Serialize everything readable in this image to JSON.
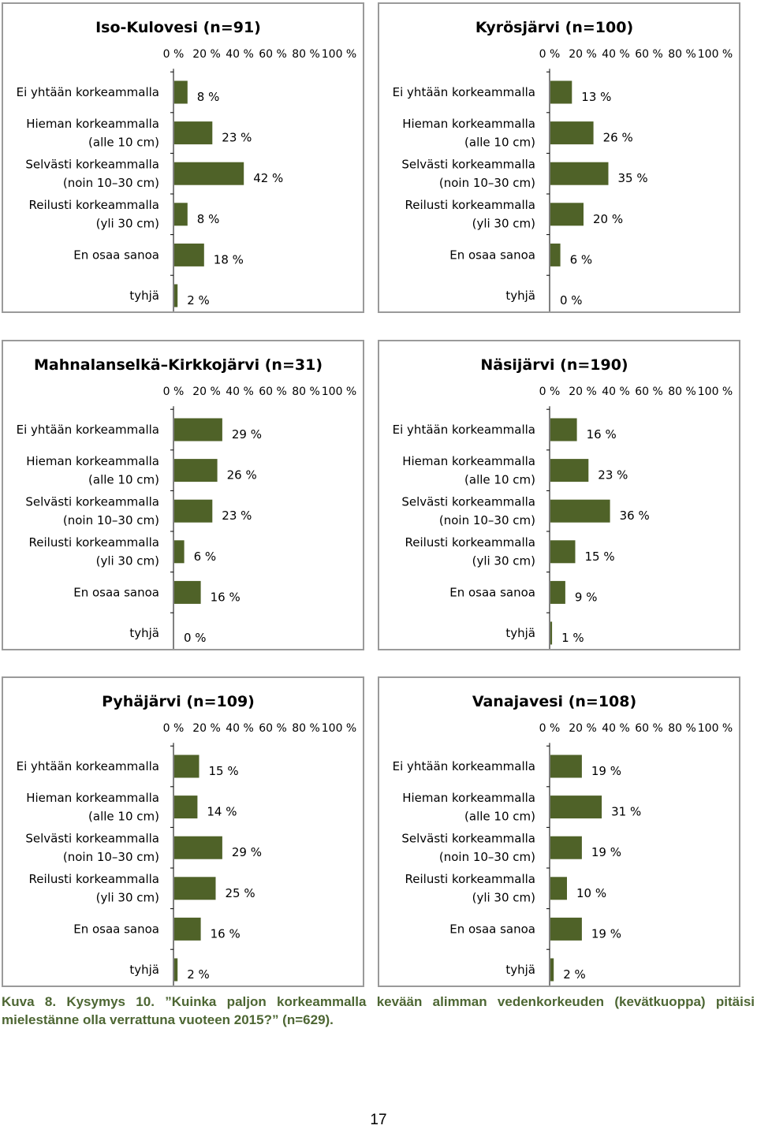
{
  "chart_data": [
    {
      "type": "bar",
      "orientation": "horizontal",
      "title": "Iso-Kulovesi (n=91)",
      "categories": [
        [
          "Ei yhtään korkeammalla"
        ],
        [
          "Hieman korkeammalla",
          "(alle 10 cm)"
        ],
        [
          "Selvästi korkeammalla",
          "(noin 10–30 cm)"
        ],
        [
          "Reilusti korkeammalla",
          "(yli 30 cm)"
        ],
        [
          "En osaa sanoa"
        ],
        [
          "tyhjä"
        ]
      ],
      "values": [
        8,
        23,
        42,
        8,
        18,
        2
      ],
      "value_labels": [
        "8 %",
        "23 %",
        "42 %",
        "8 %",
        "18 %",
        "2 %"
      ],
      "xticks": [
        "0 %",
        "20 %",
        "40 %",
        "60 %",
        "80 %",
        "100 %"
      ],
      "xlim": [
        0,
        100
      ],
      "xaxis_position": "top",
      "grid": false,
      "legend": "none",
      "bar_color": "#4f6228"
    },
    {
      "type": "bar",
      "orientation": "horizontal",
      "title": "Kyrösjärvi (n=100)",
      "categories": [
        [
          "Ei yhtään korkeammalla"
        ],
        [
          "Hieman korkeammalla",
          "(alle 10 cm)"
        ],
        [
          "Selvästi korkeammalla",
          "(noin 10–30 cm)"
        ],
        [
          "Reilusti korkeammalla",
          "(yli 30 cm)"
        ],
        [
          "En osaa sanoa"
        ],
        [
          "tyhjä"
        ]
      ],
      "values": [
        13,
        26,
        35,
        20,
        6,
        0
      ],
      "value_labels": [
        "13 %",
        "26 %",
        "35 %",
        "20 %",
        "6 %",
        "0 %"
      ],
      "xticks": [
        "0 %",
        "20 %",
        "40 %",
        "60 %",
        "80 %",
        "100 %"
      ],
      "xlim": [
        0,
        100
      ],
      "xaxis_position": "top",
      "grid": false,
      "legend": "none",
      "bar_color": "#4f6228"
    },
    {
      "type": "bar",
      "orientation": "horizontal",
      "title": "Mahnalanselkä–Kirkkojärvi  (n=31)",
      "categories": [
        [
          "Ei yhtään korkeammalla"
        ],
        [
          "Hieman korkeammalla",
          "(alle 10 cm)"
        ],
        [
          "Selvästi korkeammalla",
          "(noin 10–30 cm)"
        ],
        [
          "Reilusti korkeammalla",
          "(yli 30 cm)"
        ],
        [
          "En osaa sanoa"
        ],
        [
          "tyhjä"
        ]
      ],
      "values": [
        29,
        26,
        23,
        6,
        16,
        0
      ],
      "value_labels": [
        "29 %",
        "26 %",
        "23 %",
        "6 %",
        "16 %",
        "0 %"
      ],
      "xticks": [
        "0 %",
        "20 %",
        "40 %",
        "60 %",
        "80 %",
        "100 %"
      ],
      "xlim": [
        0,
        100
      ],
      "xaxis_position": "top",
      "grid": false,
      "legend": "none",
      "bar_color": "#4f6228"
    },
    {
      "type": "bar",
      "orientation": "horizontal",
      "title": "Näsijärvi (n=190)",
      "categories": [
        [
          "Ei yhtään korkeammalla"
        ],
        [
          "Hieman korkeammalla",
          "(alle 10 cm)"
        ],
        [
          "Selvästi korkeammalla",
          "(noin 10–30 cm)"
        ],
        [
          "Reilusti korkeammalla",
          "(yli 30 cm)"
        ],
        [
          "En osaa sanoa"
        ],
        [
          "tyhjä"
        ]
      ],
      "values": [
        16,
        23,
        36,
        15,
        9,
        1
      ],
      "value_labels": [
        "16 %",
        "23 %",
        "36 %",
        "15 %",
        "9 %",
        "1 %"
      ],
      "xticks": [
        "0 %",
        "20 %",
        "40 %",
        "60 %",
        "80 %",
        "100 %"
      ],
      "xlim": [
        0,
        100
      ],
      "xaxis_position": "top",
      "grid": false,
      "legend": "none",
      "bar_color": "#4f6228"
    },
    {
      "type": "bar",
      "orientation": "horizontal",
      "title": "Pyhäjärvi (n=109)",
      "categories": [
        [
          "Ei yhtään korkeammalla"
        ],
        [
          "Hieman korkeammalla",
          "(alle 10 cm)"
        ],
        [
          "Selvästi korkeammalla",
          "(noin 10–30 cm)"
        ],
        [
          "Reilusti korkeammalla",
          "(yli 30 cm)"
        ],
        [
          "En osaa sanoa"
        ],
        [
          "tyhjä"
        ]
      ],
      "values": [
        15,
        14,
        29,
        25,
        16,
        2
      ],
      "value_labels": [
        "15 %",
        "14 %",
        "29 %",
        "25 %",
        "16 %",
        "2 %"
      ],
      "xticks": [
        "0 %",
        "20 %",
        "40 %",
        "60 %",
        "80 %",
        "100 %"
      ],
      "xlim": [
        0,
        100
      ],
      "xaxis_position": "top",
      "grid": false,
      "legend": "none",
      "bar_color": "#4f6228"
    },
    {
      "type": "bar",
      "orientation": "horizontal",
      "title": "Vanajavesi (n=108)",
      "categories": [
        [
          "Ei yhtään korkeammalla"
        ],
        [
          "Hieman korkeammalla",
          "(alle 10 cm)"
        ],
        [
          "Selvästi korkeammalla",
          "(noin 10–30 cm)"
        ],
        [
          "Reilusti korkeammalla",
          "(yli 30 cm)"
        ],
        [
          "En osaa sanoa"
        ],
        [
          "tyhjä"
        ]
      ],
      "values": [
        19,
        31,
        19,
        10,
        19,
        2
      ],
      "value_labels": [
        "19 %",
        "31 %",
        "19 %",
        "10 %",
        "19 %",
        "2 %"
      ],
      "xticks": [
        "0 %",
        "20 %",
        "40 %",
        "60 %",
        "80 %",
        "100 %"
      ],
      "xlim": [
        0,
        100
      ],
      "xaxis_position": "top",
      "grid": false,
      "legend": "none",
      "bar_color": "#4f6228"
    }
  ],
  "caption": {
    "text": "Kuva 8. Kysymys 10. ”Kuinka paljon korkeammalla kevään alimman vedenkorkeuden (kevätkuoppa) pitäisi mielestänne olla verrattuna vuoteen 2015?” (n=629).",
    "color": "#4d6633"
  },
  "page_number": "17"
}
